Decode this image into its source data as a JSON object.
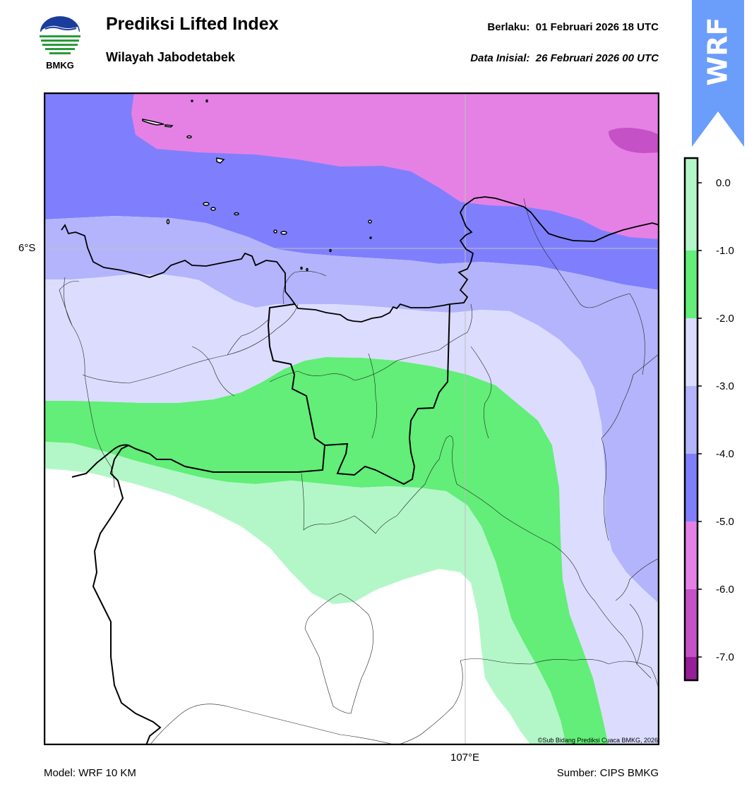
{
  "header": {
    "title": "Prediksi Lifted Index",
    "subtitle": "Wilayah Jabodetabek",
    "valid_label": "Berlaku:",
    "valid_value": "01 Februari 2026 18 UTC",
    "init_label": "Data Inisial:",
    "init_value": "26 Februari 2026 00 UTC"
  },
  "logo": {
    "name": "BMKG",
    "icon": "bmkg-logo"
  },
  "badge": {
    "text": "WRF",
    "color": "#6699ff"
  },
  "map": {
    "lat_label": "6°S",
    "lon_label": "107°E",
    "copyright": "©Sub Bidang Prediksi Cuaca BMKG, 2026"
  },
  "footer": {
    "model": "Model: WRF 10 KM",
    "source": "Sumber: CIPS BMKG"
  },
  "colorbar": {
    "ticks": [
      "0.0",
      "-1.0",
      "-2.0",
      "-3.0",
      "-4.0",
      "-5.0",
      "-6.0",
      "-7.0"
    ],
    "bands": [
      {
        "range": "0 to -1",
        "color": "#b3f7c8"
      },
      {
        "range": "-1 to -2",
        "color": "#62ee78"
      },
      {
        "range": "-2 to -3",
        "color": "#dcdcff"
      },
      {
        "range": "-3 to -4",
        "color": "#b4b4fd"
      },
      {
        "range": "-4 to -5",
        "color": "#7f7ffd"
      },
      {
        "range": "-5 to -6",
        "color": "#e581e5"
      },
      {
        "range": "-6 to -7",
        "color": "#c551c6"
      },
      {
        "range": "below -7",
        "color": "#961e96"
      }
    ]
  }
}
